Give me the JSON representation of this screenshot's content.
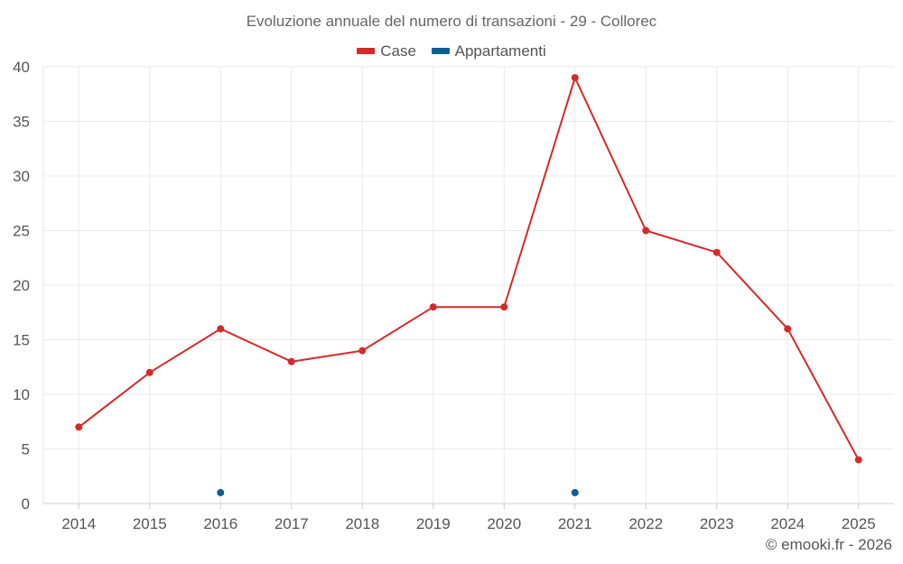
{
  "chart_data": {
    "type": "line",
    "title": "Evoluzione annuale del numero di transazioni - 29 - Collorec",
    "xlabel": "",
    "ylabel": "",
    "categories": [
      "2014",
      "2015",
      "2016",
      "2017",
      "2018",
      "2019",
      "2020",
      "2021",
      "2022",
      "2023",
      "2024",
      "2025"
    ],
    "ylim": [
      0,
      40
    ],
    "yticks": [
      0,
      5,
      10,
      15,
      20,
      25,
      30,
      35,
      40
    ],
    "grid": true,
    "legend_position": "top-center",
    "series": [
      {
        "name": "Case",
        "color": "#d42a2a",
        "values": [
          7,
          12,
          16,
          13,
          14,
          18,
          18,
          39,
          25,
          23,
          16,
          4
        ]
      },
      {
        "name": "Appartamenti",
        "color": "#0a5f94",
        "values": [
          null,
          null,
          1,
          null,
          null,
          null,
          null,
          1,
          null,
          null,
          null,
          null
        ]
      }
    ]
  },
  "footer": {
    "credit": "© emooki.fr - 2026"
  }
}
